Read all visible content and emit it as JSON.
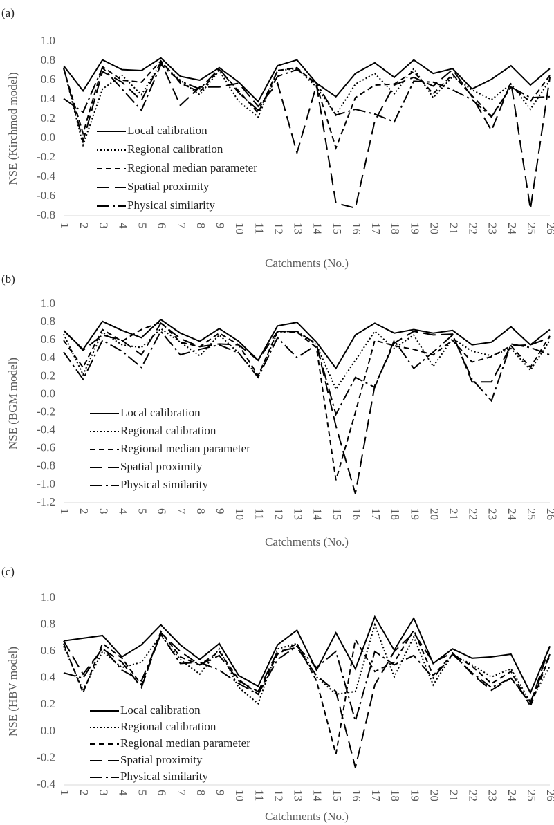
{
  "chart_data": [
    {
      "type": "line",
      "panel_label": "(a)",
      "ylabel": "NSE (Kirchmod model)",
      "xlabel": "Catchments (No.)",
      "categories": [
        "1",
        "2",
        "3",
        "4",
        "5",
        "6",
        "7",
        "8",
        "9",
        "10",
        "11",
        "12",
        "13",
        "14",
        "15",
        "16",
        "17",
        "18",
        "19",
        "20",
        "21",
        "22",
        "23",
        "24",
        "25",
        "26"
      ],
      "ylim": [
        -0.8,
        1.0
      ],
      "yticks": [
        {
          "value": 1,
          "label": "1.0"
        },
        0.8,
        0.6,
        0.4,
        0.2,
        {
          "value": 0,
          "label": "0.0"
        },
        -0.2,
        -0.4,
        -0.6,
        -0.8
      ],
      "series": [
        {
          "name": "Local calibration",
          "color": "#000000",
          "values": [
            0.75,
            0.49,
            0.81,
            0.71,
            0.7,
            0.83,
            0.64,
            0.6,
            0.73,
            0.58,
            0.38,
            0.75,
            0.81,
            0.57,
            0.43,
            0.67,
            0.78,
            0.63,
            0.81,
            0.67,
            0.72,
            0.51,
            0.61,
            0.75,
            0.55,
            0.72
          ]
        },
        {
          "name": "Regional calibration",
          "color": "#000000",
          "values": [
            0.73,
            -0.07,
            0.51,
            0.65,
            0.45,
            0.78,
            0.6,
            0.45,
            0.7,
            0.38,
            0.22,
            0.7,
            0.72,
            0.53,
            0.24,
            0.56,
            0.67,
            0.46,
            0.72,
            0.42,
            0.64,
            0.5,
            0.4,
            0.56,
            0.3,
            0.6
          ]
        },
        {
          "name": "Regional median parameter",
          "color": "#000000",
          "values": [
            0.72,
            0.05,
            0.74,
            0.6,
            0.58,
            0.8,
            0.57,
            0.48,
            0.71,
            0.49,
            0.26,
            0.7,
            0.73,
            0.55,
            -0.1,
            0.42,
            0.55,
            0.56,
            0.69,
            0.46,
            0.66,
            0.44,
            0.23,
            0.53,
            0.38,
            0.65
          ]
        },
        {
          "name": "Spatial proximity",
          "color": "#000000",
          "values": [
            0.73,
            -0.03,
            0.69,
            0.58,
            0.39,
            0.79,
            0.34,
            0.53,
            0.53,
            0.57,
            0.33,
            0.57,
            -0.15,
            0.55,
            -0.67,
            -0.72,
            0.18,
            0.55,
            0.63,
            0.54,
            0.71,
            0.43,
            0.08,
            0.58,
            -0.73,
            0.63
          ]
        },
        {
          "name": "Physical similarity",
          "color": "#000000",
          "values": [
            0.41,
            0.27,
            0.73,
            0.51,
            0.29,
            0.76,
            0.59,
            0.51,
            0.72,
            0.47,
            0.29,
            0.64,
            0.71,
            0.57,
            0.24,
            0.3,
            0.25,
            0.17,
            0.59,
            0.58,
            0.5,
            0.4,
            0.22,
            0.53,
            0.42,
            0.43
          ]
        }
      ]
    },
    {
      "type": "line",
      "panel_label": "(b)",
      "ylabel": "NSE (BGM model)",
      "xlabel": "Catchments (No.)",
      "categories": [
        "1",
        "2",
        "3",
        "4",
        "5",
        "6",
        "7",
        "8",
        "9",
        "10",
        "11",
        "12",
        "13",
        "14",
        "15",
        "16",
        "17",
        "18",
        "19",
        "20",
        "21",
        "22",
        "23",
        "24",
        "25",
        "26"
      ],
      "ylim": [
        -1.2,
        1.0
      ],
      "yticks": [
        {
          "value": 1,
          "label": "1.0"
        },
        0.8,
        0.6,
        0.4,
        0.2,
        {
          "value": 0,
          "label": "0.0"
        },
        -0.2,
        -0.4,
        -0.6,
        -0.8,
        {
          "value": -1,
          "label": "-1.0"
        },
        -1.2
      ],
      "series": [
        {
          "name": "Local calibration",
          "color": "#000000",
          "values": [
            0.71,
            0.5,
            0.81,
            0.71,
            0.63,
            0.83,
            0.68,
            0.59,
            0.73,
            0.59,
            0.38,
            0.76,
            0.8,
            0.58,
            0.29,
            0.66,
            0.79,
            0.68,
            0.72,
            0.68,
            0.71,
            0.55,
            0.58,
            0.75,
            0.55,
            0.72
          ]
        },
        {
          "name": "Regional calibration",
          "color": "#000000",
          "values": [
            0.67,
            0.22,
            0.69,
            0.55,
            0.52,
            0.73,
            0.58,
            0.43,
            0.66,
            0.46,
            0.2,
            0.69,
            0.7,
            0.55,
            0.06,
            0.38,
            0.7,
            0.51,
            0.66,
            0.31,
            0.62,
            0.48,
            0.43,
            0.51,
            0.27,
            0.6
          ]
        },
        {
          "name": "Regional median parameter",
          "color": "#000000",
          "values": [
            0.6,
            0.3,
            0.72,
            0.59,
            0.72,
            0.8,
            0.58,
            0.53,
            0.68,
            0.55,
            0.21,
            0.7,
            0.69,
            0.52,
            -0.95,
            -0.2,
            0.6,
            0.54,
            0.5,
            0.44,
            0.6,
            0.36,
            0.42,
            0.54,
            0.3,
            0.65
          ]
        },
        {
          "name": "Spatial proximity",
          "color": "#000000",
          "values": [
            0.71,
            0.49,
            0.66,
            0.6,
            0.44,
            0.79,
            0.62,
            0.53,
            0.56,
            0.55,
            0.38,
            0.7,
            0.7,
            0.56,
            -0.35,
            -1.1,
            0.1,
            0.57,
            0.7,
            0.66,
            0.67,
            0.14,
            0.14,
            0.54,
            0.55,
            0.63
          ]
        },
        {
          "name": "Physical similarity",
          "color": "#000000",
          "values": [
            0.47,
            0.17,
            0.6,
            0.48,
            0.3,
            0.7,
            0.44,
            0.5,
            0.55,
            0.46,
            0.19,
            0.63,
            0.41,
            0.55,
            -0.22,
            0.19,
            0.08,
            0.6,
            0.29,
            0.47,
            0.66,
            0.17,
            -0.07,
            0.56,
            0.52,
            0.44
          ]
        }
      ]
    },
    {
      "type": "line",
      "panel_label": "(c)",
      "ylabel": "NSE (HBV model)",
      "xlabel": "Catchments (No.)",
      "categories": [
        "1",
        "2",
        "3",
        "4",
        "5",
        "6",
        "7",
        "8",
        "9",
        "10",
        "11",
        "12",
        "13",
        "14",
        "15",
        "16",
        "17",
        "18",
        "19",
        "20",
        "21",
        "22",
        "23",
        "24",
        "25",
        "26"
      ],
      "ylim": [
        -0.4,
        1.0
      ],
      "yticks": [
        {
          "value": 1,
          "label": "1.0"
        },
        0.8,
        0.6,
        0.4,
        0.2,
        {
          "value": 0,
          "label": "0.0"
        },
        -0.2,
        -0.4
      ],
      "series": [
        {
          "name": "Local calibration",
          "color": "#000000",
          "values": [
            0.68,
            0.7,
            0.72,
            0.56,
            0.65,
            0.8,
            0.65,
            0.54,
            0.66,
            0.42,
            0.34,
            0.65,
            0.76,
            0.46,
            0.74,
            0.47,
            0.86,
            0.61,
            0.85,
            0.51,
            0.62,
            0.55,
            0.56,
            0.58,
            0.29,
            0.64
          ]
        },
        {
          "name": "Regional calibration",
          "color": "#000000",
          "values": [
            0.64,
            0.31,
            0.6,
            0.48,
            0.52,
            0.72,
            0.54,
            0.43,
            0.62,
            0.33,
            0.21,
            0.62,
            0.66,
            0.41,
            0.28,
            0.3,
            0.8,
            0.41,
            0.71,
            0.35,
            0.58,
            0.5,
            0.41,
            0.47,
            0.22,
            0.49
          ]
        },
        {
          "name": "Regional median parameter",
          "color": "#000000",
          "values": [
            0.66,
            0.29,
            0.66,
            0.55,
            0.35,
            0.75,
            0.56,
            0.5,
            0.6,
            0.39,
            0.28,
            0.58,
            0.66,
            0.38,
            -0.17,
            0.69,
            0.45,
            0.52,
            0.76,
            0.42,
            0.58,
            0.49,
            0.36,
            0.45,
            0.19,
            0.57
          ]
        },
        {
          "name": "Spatial proximity",
          "color": "#000000",
          "values": [
            0.68,
            0.43,
            0.62,
            0.52,
            0.33,
            0.74,
            0.6,
            0.5,
            0.57,
            0.38,
            0.3,
            0.6,
            0.63,
            0.42,
            0.3,
            -0.27,
            0.35,
            0.6,
            0.74,
            0.52,
            0.59,
            0.43,
            0.31,
            0.4,
            0.21,
            0.64
          ]
        },
        {
          "name": "Physical similarity",
          "color": "#000000",
          "values": [
            0.44,
            0.4,
            0.63,
            0.46,
            0.38,
            0.73,
            0.51,
            0.52,
            0.46,
            0.36,
            0.28,
            0.54,
            0.64,
            0.48,
            0.6,
            0.08,
            0.6,
            0.5,
            0.57,
            0.4,
            0.58,
            0.44,
            0.33,
            0.4,
            0.22,
            0.58
          ]
        }
      ]
    }
  ]
}
